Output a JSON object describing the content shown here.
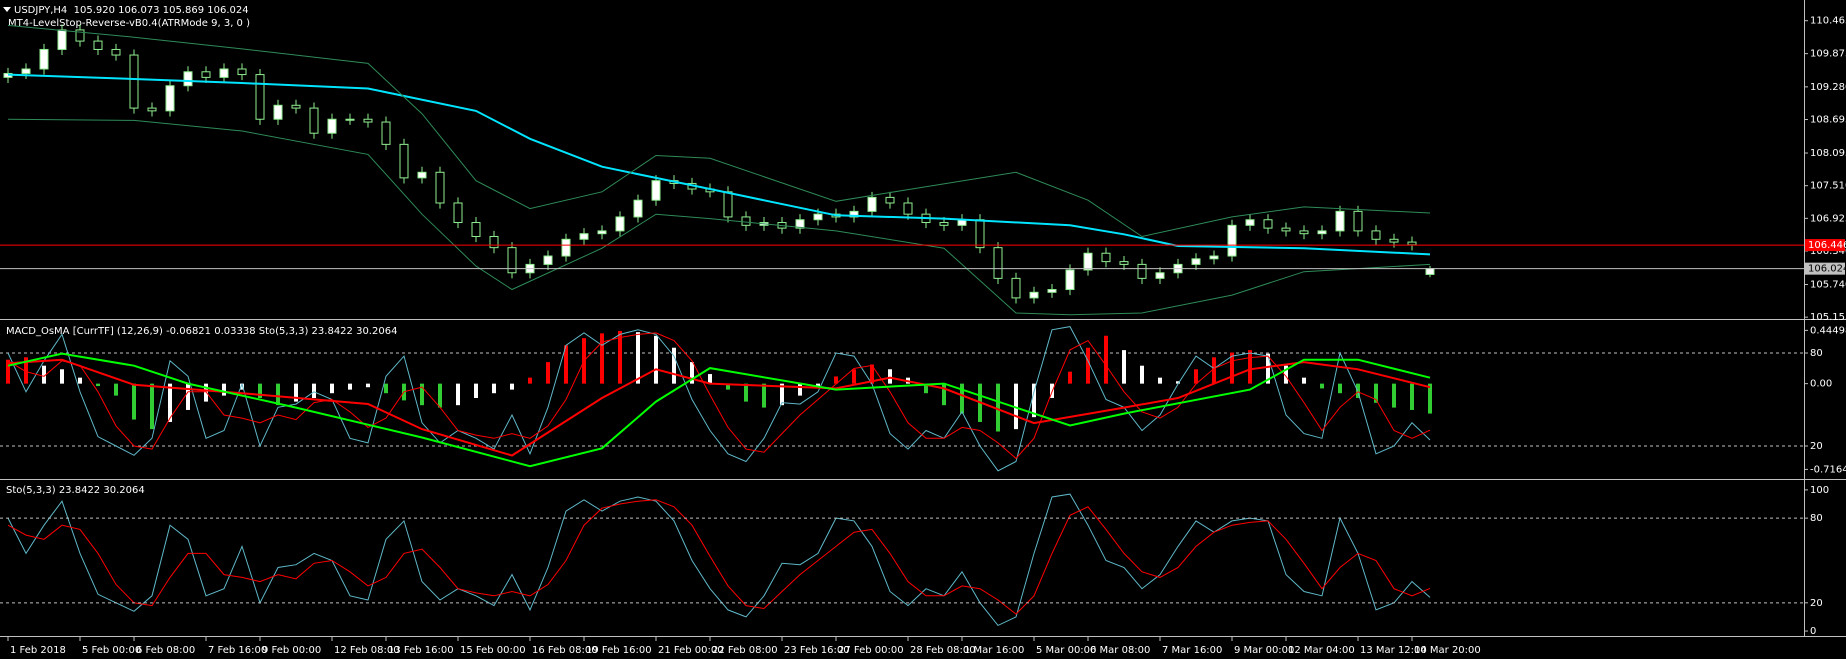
{
  "chart_data": [
    {
      "type": "candlestick",
      "title": "USDJPY,H4  105.920 106.073 105.869 106.024",
      "subtitle": "MT4-LevelStop-Reverse-vB0.4(ATRMode 9, 3, 0 )",
      "up_color": "#ffffff",
      "down_color": "#000000",
      "candle_stroke": "#90ee90",
      "ylim": [
        105.14,
        110.8
      ],
      "yticks": [
        110.465,
        109.875,
        {
          "value": 109.28,
          "label": "109.280"
        },
        108.695,
        108.095,
        {
          "value": 107.51,
          "label": "107.510"
        },
        106.925,
        {
          "value": 106.34,
          "label": "106.340"
        },
        {
          "value": 105.74,
          "label": "105.740"
        },
        105.155
      ],
      "open": [
        109.45,
        109.52,
        109.6,
        109.95,
        110.3,
        110.1,
        109.95,
        109.85,
        108.9,
        108.85,
        109.3,
        109.55,
        109.45,
        109.6,
        109.5,
        108.7,
        108.95,
        108.9,
        108.45,
        108.7,
        108.7,
        108.65,
        108.25,
        107.65,
        107.75,
        107.2,
        106.85,
        106.6,
        106.4,
        105.95,
        106.1,
        106.25,
        106.55,
        106.65,
        106.7,
        106.95,
        107.25,
        107.6,
        107.55,
        107.45,
        107.4,
        106.95,
        106.8,
        106.85,
        106.75,
        106.9,
        107,
        106.95,
        107.05,
        107.3,
        107.2,
        107,
        106.85,
        106.8,
        106.9,
        106.4,
        105.85,
        105.5,
        105.6,
        105.65,
        106,
        106.3,
        106.15,
        106.1,
        105.85,
        105.95,
        106.1,
        106.2,
        106.25,
        106.8,
        106.9,
        106.75,
        106.7,
        106.65,
        106.7,
        107.05,
        106.7,
        106.55,
        106.5,
        105.92
      ],
      "high": [
        109.62,
        109.7,
        110.05,
        110.4,
        110.4,
        110.2,
        110.05,
        109.95,
        109,
        109.4,
        109.65,
        109.65,
        109.7,
        109.7,
        109.6,
        109.05,
        109.05,
        109,
        108.8,
        108.8,
        108.8,
        108.75,
        108.35,
        107.85,
        107.85,
        107.3,
        106.95,
        106.7,
        106.5,
        106.2,
        106.35,
        106.65,
        106.75,
        106.8,
        107.05,
        107.35,
        107.7,
        107.7,
        107.65,
        107.55,
        107.5,
        107.05,
        106.95,
        106.95,
        107,
        107.1,
        107.1,
        107.15,
        107.4,
        107.4,
        107.3,
        107.1,
        106.95,
        107,
        107,
        106.5,
        105.95,
        105.7,
        105.75,
        106.1,
        106.4,
        106.4,
        106.25,
        106.2,
        106.05,
        106.2,
        106.3,
        106.35,
        106.9,
        107,
        107,
        106.85,
        106.8,
        106.8,
        107.15,
        107.15,
        106.8,
        106.65,
        106.6,
        106.073
      ],
      "low": [
        109.35,
        109.42,
        109.5,
        109.85,
        110,
        109.85,
        109.75,
        108.8,
        108.75,
        108.75,
        109.2,
        109.35,
        109.35,
        109.4,
        108.6,
        108.6,
        108.8,
        108.35,
        108.35,
        108.6,
        108.55,
        108.15,
        107.55,
        107.55,
        107.1,
        106.75,
        106.5,
        106.3,
        105.85,
        105.85,
        106,
        106.15,
        106.45,
        106.55,
        106.6,
        106.85,
        107.15,
        107.45,
        107.35,
        107.3,
        106.85,
        106.7,
        106.7,
        106.65,
        106.65,
        106.8,
        106.85,
        106.85,
        106.95,
        107.1,
        106.9,
        106.75,
        106.7,
        106.7,
        106.3,
        105.75,
        105.4,
        105.4,
        105.5,
        105.55,
        105.9,
        106.05,
        106,
        105.75,
        105.75,
        105.85,
        106,
        106.1,
        106.15,
        106.7,
        106.65,
        106.6,
        106.55,
        106.55,
        106.6,
        106.6,
        106.45,
        106.4,
        106.35,
        105.869
      ],
      "close": [
        109.52,
        109.6,
        109.95,
        110.3,
        110.1,
        109.95,
        109.85,
        108.9,
        108.85,
        109.3,
        109.55,
        109.45,
        109.6,
        109.5,
        108.7,
        108.95,
        108.9,
        108.45,
        108.7,
        108.7,
        108.65,
        108.25,
        107.65,
        107.75,
        107.2,
        106.85,
        106.6,
        106.4,
        105.95,
        106.1,
        106.25,
        106.55,
        106.65,
        106.7,
        106.95,
        107.25,
        107.6,
        107.55,
        107.45,
        107.4,
        106.95,
        106.8,
        106.85,
        106.75,
        106.9,
        107,
        106.95,
        107.05,
        107.3,
        107.2,
        107,
        106.85,
        106.8,
        106.9,
        106.4,
        105.85,
        105.5,
        105.6,
        105.65,
        106,
        106.3,
        106.15,
        106.1,
        105.85,
        105.95,
        106.1,
        106.2,
        106.25,
        106.8,
        106.9,
        106.75,
        106.7,
        106.65,
        106.7,
        107.05,
        106.7,
        106.55,
        106.5,
        106.45,
        106.024
      ],
      "series": [
        {
          "color": "#00e5ff",
          "width": 2,
          "x": [
            0,
            7,
            13,
            20,
            26,
            29,
            33,
            36,
            39,
            46,
            52,
            59,
            62,
            65,
            72,
            79
          ],
          "values": [
            109.5,
            109.42,
            109.35,
            109.25,
            108.85,
            108.35,
            107.85,
            107.65,
            107.45,
            106.98,
            106.92,
            106.8,
            106.64,
            106.43,
            106.39,
            106.28
          ]
        },
        {
          "color": "#2e8b57",
          "width": 1,
          "x": [
            0,
            7,
            13,
            20,
            23,
            26,
            29,
            33,
            36,
            39,
            46,
            50,
            56,
            60,
            63,
            68,
            72,
            79
          ],
          "values": [
            110.38,
            110.17,
            109.96,
            109.7,
            108.8,
            107.6,
            107.1,
            107.4,
            108.05,
            108,
            107.23,
            107.44,
            107.75,
            107.25,
            106.6,
            106.95,
            107.13,
            107.02
          ]
        },
        {
          "color": "#2e8b57",
          "width": 1,
          "x": [
            0,
            7,
            13,
            20,
            23,
            26,
            28,
            33,
            36,
            39,
            46,
            52,
            56,
            59,
            63,
            68,
            72,
            79
          ],
          "values": [
            108.7,
            108.68,
            108.49,
            108.07,
            107,
            106.07,
            105.65,
            106.39,
            107,
            106.92,
            106.7,
            106.39,
            105.23,
            105.2,
            105.23,
            105.55,
            105.97,
            106.1
          ]
        }
      ],
      "levels": [
        {
          "value": 106.446,
          "color": "#ff0000",
          "text_color": "#ffffff"
        },
        {
          "value": 106.024,
          "color": "#c0c0c0",
          "text_color": "#000000"
        }
      ],
      "level_labels": true
    },
    {
      "type": "macd",
      "title": "MACD_OsMA [CurrTF] (12,26,9) -0.06821 0.03338 Sto(5,3,3) 23.8422 30.2064",
      "ylim": [
        -0.78,
        0.515
      ],
      "yticks": [
        0.44498,
        {
          "value": 0,
          "label": "0.00"
        },
        -0.7164
      ],
      "y2lim": [
        0,
        100
      ],
      "y2ticks": [
        80,
        20
      ],
      "y2grid": true,
      "colors": {
        "rise_above": "#ff0000",
        "fall_below": "#32cd32",
        "other": "#ffffff"
      },
      "values": [
        0.2,
        0.22,
        0.15,
        0.12,
        0.05,
        -0.02,
        -0.1,
        -0.3,
        -0.38,
        -0.32,
        -0.22,
        -0.15,
        -0.1,
        -0.05,
        -0.12,
        -0.18,
        -0.15,
        -0.12,
        -0.08,
        -0.05,
        -0.03,
        -0.08,
        -0.14,
        -0.18,
        -0.2,
        -0.18,
        -0.12,
        -0.08,
        -0.05,
        0.05,
        0.18,
        0.32,
        0.38,
        0.42,
        0.44,
        0.43,
        0.4,
        0.3,
        0.18,
        0.08,
        -0.05,
        -0.15,
        -0.2,
        -0.18,
        -0.1,
        -0.04,
        0.06,
        0.12,
        0.16,
        0.12,
        0.05,
        -0.08,
        -0.18,
        -0.25,
        -0.32,
        -0.4,
        -0.38,
        -0.28,
        -0.12,
        0.1,
        0.3,
        0.4,
        0.28,
        0.15,
        0.05,
        0.02,
        0.12,
        0.22,
        0.26,
        0.28,
        0.25,
        0.15,
        0.05,
        -0.04,
        -0.08,
        -0.12,
        -0.16,
        -0.2,
        -0.22,
        -0.25
      ],
      "series": [
        {
          "color": "#5fb8c8",
          "width": 1,
          "axis": "y2",
          "values": [
            80,
            55,
            75,
            92,
            55,
            26,
            20,
            14,
            25,
            75,
            65,
            25,
            30,
            60,
            20,
            45,
            47,
            55,
            50,
            25,
            22,
            65,
            78,
            35,
            22,
            30,
            25,
            18,
            40,
            15,
            45,
            85,
            93,
            85,
            92,
            95,
            92,
            78,
            50,
            30,
            15,
            10,
            25,
            48,
            47,
            55,
            80,
            78,
            60,
            28,
            18,
            30,
            25,
            42,
            20,
            4,
            10,
            55,
            95,
            97,
            75,
            50,
            45,
            30,
            40,
            60,
            78,
            70,
            78,
            80,
            78,
            40,
            28,
            25,
            80,
            55,
            15,
            20,
            35,
            23.8422
          ]
        },
        {
          "color": "#ff0000",
          "width": 1,
          "axis": "y2",
          "values": [
            75,
            68,
            65,
            75,
            72,
            55,
            33,
            20,
            18,
            38,
            55,
            55,
            40,
            38,
            35,
            40,
            37,
            48,
            50,
            42,
            32,
            38,
            55,
            58,
            45,
            30,
            27,
            25,
            28,
            25,
            33,
            50,
            75,
            87,
            90,
            92,
            93,
            88,
            75,
            53,
            32,
            18,
            16,
            28,
            40,
            50,
            60,
            70,
            72,
            55,
            35,
            25,
            25,
            32,
            30,
            22,
            12,
            25,
            55,
            82,
            88,
            72,
            55,
            42,
            38,
            45,
            60,
            70,
            75,
            77,
            78,
            65,
            48,
            30,
            45,
            55,
            50,
            30,
            25,
            30.2064
          ]
        },
        {
          "color": "#ff0000",
          "width": 2,
          "x": [
            0,
            3,
            7,
            13,
            20,
            23,
            28,
            33,
            36,
            39,
            46,
            49,
            52,
            57,
            62,
            65,
            69,
            72,
            75,
            79
          ],
          "values": [
            0.17,
            0.2,
            -0.01,
            -0.08,
            -0.17,
            -0.38,
            -0.6,
            -0.12,
            0.12,
            0,
            -0.04,
            0.05,
            -0.04,
            -0.33,
            -0.2,
            -0.12,
            0.12,
            0.18,
            0.12,
            -0.03
          ]
        },
        {
          "color": "#00ff00",
          "width": 2,
          "x": [
            0,
            3,
            7,
            10,
            16,
            23,
            29,
            33,
            36,
            39,
            46,
            52,
            59,
            62,
            69,
            72,
            75,
            79
          ],
          "values": [
            0.15,
            0.25,
            0.15,
            0,
            -0.2,
            -0.45,
            -0.69,
            -0.54,
            -0.15,
            0.13,
            -0.05,
            0,
            -0.35,
            -0.25,
            -0.05,
            0.2,
            0.2,
            0.05
          ]
        }
      ]
    },
    {
      "type": "line",
      "title": "Sto(5,3,3) 23.8422 30.2064",
      "ylim": [
        -2.8,
        106.3
      ],
      "yticks": [
        100,
        80,
        20,
        0
      ],
      "levels": [
        {
          "value": 80,
          "color": "#c0c0c0",
          "dashed": true
        },
        {
          "value": 20,
          "color": "#c0c0c0",
          "dashed": true
        }
      ],
      "level_labels": false,
      "series": [
        {
          "color": "#5fb8c8",
          "width": 1,
          "values": [
            80,
            55,
            75,
            92,
            55,
            26,
            20,
            14,
            25,
            75,
            65,
            25,
            30,
            60,
            20,
            45,
            47,
            55,
            50,
            25,
            22,
            65,
            78,
            35,
            22,
            30,
            25,
            18,
            40,
            15,
            45,
            85,
            93,
            85,
            92,
            95,
            92,
            78,
            50,
            30,
            15,
            10,
            25,
            48,
            47,
            55,
            80,
            78,
            60,
            28,
            18,
            30,
            25,
            42,
            20,
            4,
            10,
            55,
            95,
            97,
            75,
            50,
            45,
            30,
            40,
            60,
            78,
            70,
            78,
            80,
            78,
            40,
            28,
            25,
            80,
            55,
            15,
            20,
            35,
            23.8422
          ]
        },
        {
          "color": "#ff0000",
          "width": 1,
          "values": [
            75,
            68,
            65,
            75,
            72,
            55,
            33,
            20,
            18,
            38,
            55,
            55,
            40,
            38,
            35,
            40,
            37,
            48,
            50,
            42,
            32,
            38,
            55,
            58,
            45,
            30,
            27,
            25,
            28,
            25,
            33,
            50,
            75,
            87,
            90,
            92,
            93,
            88,
            75,
            53,
            32,
            18,
            16,
            28,
            40,
            50,
            60,
            70,
            72,
            55,
            35,
            25,
            25,
            32,
            30,
            22,
            12,
            25,
            55,
            82,
            88,
            72,
            55,
            42,
            38,
            45,
            60,
            70,
            75,
            77,
            78,
            65,
            48,
            30,
            45,
            55,
            50,
            30,
            25,
            30.2064
          ]
        }
      ],
      "categories": [
        "1 Feb 2018",
        null,
        null,
        null,
        "5 Feb 00:00",
        null,
        null,
        "6 Feb 08:00",
        null,
        null,
        null,
        "7 Feb 16:00",
        null,
        null,
        "9 Feb 00:00",
        null,
        null,
        null,
        "12 Feb 08:00",
        null,
        null,
        "13 Feb 16:00",
        null,
        null,
        null,
        "15 Feb 00:00",
        null,
        null,
        null,
        "16 Feb 08:00",
        null,
        null,
        "19 Feb 16:00",
        null,
        null,
        null,
        "21 Feb 00:00",
        null,
        null,
        "22 Feb 08:00",
        null,
        null,
        null,
        "23 Feb 16:00",
        null,
        null,
        "27 Feb 00:00",
        null,
        null,
        null,
        "28 Feb 08:00",
        null,
        null,
        "1 Mar 16:00",
        null,
        null,
        null,
        "5 Mar 00:00",
        null,
        null,
        "6 Mar 08:00",
        null,
        null,
        null,
        "7 Mar 16:00",
        null,
        null,
        null,
        "9 Mar 00:00",
        null,
        null,
        "12 Mar 04:00",
        null,
        null,
        null,
        "13 Mar 12:00",
        null,
        null,
        "14 Mar 20:00",
        null
      ]
    }
  ]
}
